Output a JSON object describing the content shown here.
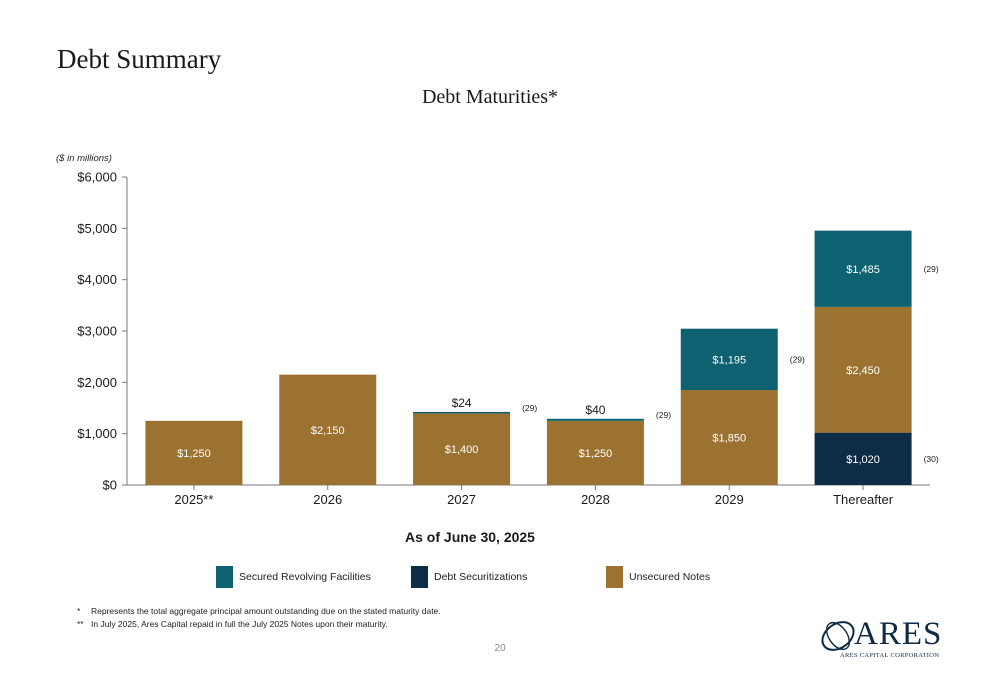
{
  "page": {
    "title": "Debt Summary",
    "page_number": "20"
  },
  "chart_data": {
    "type": "bar",
    "stacked": true,
    "title": "Debt Maturities*",
    "units_note": "($ in millions)",
    "xlabel": "As of June 30, 2025",
    "categories": [
      "2025**",
      "2026",
      "2027",
      "2028",
      "2029",
      "Thereafter"
    ],
    "ylim": [
      0,
      6000
    ],
    "yticks": [
      0,
      1000,
      2000,
      3000,
      4000,
      5000,
      6000
    ],
    "ytick_labels": [
      "$0",
      "$1,000",
      "$2,000",
      "$3,000",
      "$4,000",
      "$5,000",
      "$6,000"
    ],
    "grid": false,
    "legend_position": "bottom",
    "series": [
      {
        "name": "Debt Securitizations",
        "color": "#0c2c47",
        "values": [
          0,
          0,
          0,
          0,
          0,
          1020
        ],
        "labels": [
          "",
          "",
          "",
          "",
          "",
          "$1,020"
        ]
      },
      {
        "name": "Unsecured Notes",
        "color": "#9c7230",
        "values": [
          1250,
          2150,
          1400,
          1250,
          1850,
          2450
        ],
        "labels": [
          "$1,250",
          "$2,150",
          "$1,400",
          "$1,250",
          "$1,850",
          "$2,450"
        ]
      },
      {
        "name": "Secured Revolving Facilities",
        "color": "#0d6170",
        "values": [
          0,
          0,
          24,
          40,
          1195,
          1485
        ],
        "labels": [
          "",
          "",
          "$24",
          "$40",
          "$1,195",
          "$1,485"
        ]
      }
    ],
    "annotations": [
      {
        "category": "2027",
        "series": "Secured Revolving Facilities",
        "text": "(29)"
      },
      {
        "category": "2028",
        "series": "Secured Revolving Facilities",
        "text": "(29)"
      },
      {
        "category": "2029",
        "series": "Secured Revolving Facilities",
        "text": "(29)"
      },
      {
        "category": "Thereafter",
        "series": "Secured Revolving Facilities",
        "text": "(29)"
      },
      {
        "category": "Thereafter",
        "series": "Debt Securitizations",
        "text": "(30)"
      }
    ]
  },
  "legend": [
    {
      "label": "Secured Revolving Facilities",
      "color": "#0d6170"
    },
    {
      "label": "Debt Securitizations",
      "color": "#0c2c47"
    },
    {
      "label": "Unsecured Notes",
      "color": "#9c7230"
    }
  ],
  "footnotes": [
    {
      "mark": "*",
      "text": "Represents the total aggregate principal amount outstanding due on the stated maturity date."
    },
    {
      "mark": "**",
      "text": "In July 2025, Ares Capital repaid in full the July 2025 Notes upon their maturity."
    }
  ],
  "logo": {
    "wordmark": "ARES",
    "subtitle": "ARES CAPITAL CORPORATION"
  }
}
